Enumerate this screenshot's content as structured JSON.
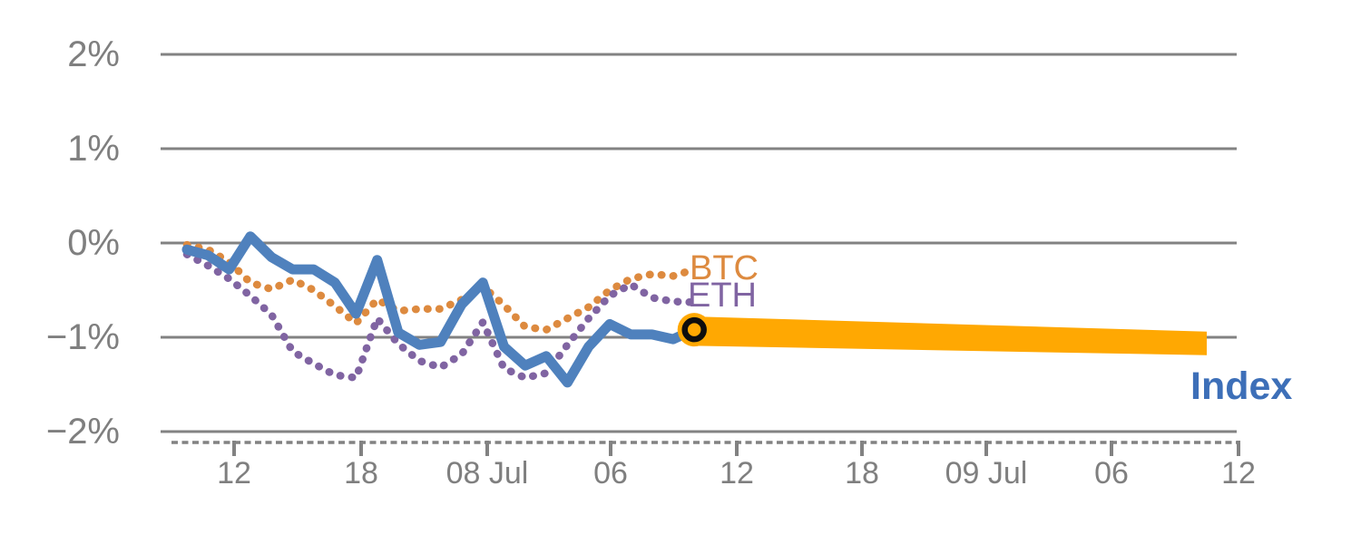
{
  "chart_data": {
    "type": "line",
    "title": "",
    "description": "Hourly percent change of crypto Index vs BTC and ETH with 24h Index forecast band",
    "grid": "horizontal",
    "legend_position": "inline-labels",
    "colors": {
      "index_line": "#4F81BD",
      "index_label": "#3D6FB8",
      "btc": "#DD8A3F",
      "eth": "#8064A2",
      "forecast_band": "#FFA802",
      "marker_ring": "#0D0D0D",
      "grid": "#828282",
      "tick_text": "#7F7F7F"
    },
    "y_axis": {
      "tick_labels": [
        "2%",
        "1%",
        "0%",
        "−1%",
        "−2%"
      ],
      "tick_values": [
        2,
        1,
        0,
        -1,
        -2
      ],
      "ylim": [
        -2.3,
        2.3
      ],
      "unit": "percent change"
    },
    "x_axis": {
      "tick_labels": [
        "12",
        "18",
        "08 Jul",
        "06",
        "12",
        "18",
        "09 Jul",
        "06",
        "12"
      ],
      "major_tick_interval": "6 hours",
      "minor_tick_interval": "1 hour"
    },
    "x_hours": [
      "07 Jul 10:00",
      "07 Jul 11:00",
      "07 Jul 12:00",
      "07 Jul 13:00",
      "07 Jul 14:00",
      "07 Jul 15:00",
      "07 Jul 16:00",
      "07 Jul 17:00",
      "07 Jul 18:00",
      "07 Jul 19:00",
      "07 Jul 20:00",
      "07 Jul 21:00",
      "07 Jul 22:00",
      "07 Jul 23:00",
      "08 Jul 00:00",
      "08 Jul 01:00",
      "08 Jul 02:00",
      "08 Jul 03:00",
      "08 Jul 04:00",
      "08 Jul 05:00",
      "08 Jul 06:00",
      "08 Jul 07:00",
      "08 Jul 08:00",
      "08 Jul 09:00",
      "08 Jul 10:00"
    ],
    "series": [
      {
        "name": "Index",
        "style": "solid-thick",
        "color": "#4F81BD",
        "values": [
          -0.07,
          -0.13,
          -0.28,
          0.07,
          -0.15,
          -0.28,
          -0.28,
          -0.42,
          -0.75,
          -0.18,
          -0.95,
          -1.08,
          -1.05,
          -0.65,
          -0.42,
          -1.1,
          -1.3,
          -1.2,
          -1.48,
          -1.1,
          -0.86,
          -0.97,
          -0.97,
          -1.02,
          -0.92
        ]
      },
      {
        "name": "BTC",
        "style": "dotted",
        "color": "#DD8A3F",
        "values": [
          -0.02,
          -0.07,
          -0.2,
          -0.42,
          -0.49,
          -0.39,
          -0.5,
          -0.67,
          -0.85,
          -0.6,
          -0.72,
          -0.7,
          -0.7,
          -0.6,
          -0.46,
          -0.66,
          -0.89,
          -0.92,
          -0.8,
          -0.68,
          -0.5,
          -0.38,
          -0.33,
          -0.35,
          -0.28
        ]
      },
      {
        "name": "ETH",
        "style": "dotted",
        "color": "#8064A2",
        "values": [
          -0.12,
          -0.24,
          -0.38,
          -0.56,
          -0.76,
          -1.15,
          -1.28,
          -1.4,
          -1.43,
          -0.8,
          -1.07,
          -1.25,
          -1.32,
          -1.18,
          -0.84,
          -1.33,
          -1.43,
          -1.38,
          -1.08,
          -0.8,
          -0.56,
          -0.44,
          -0.58,
          -0.62,
          -0.63
        ]
      }
    ],
    "forecast": {
      "series": "Index",
      "start_time": "08 Jul 10:00",
      "end_time": "09 Jul 10:00",
      "center_start": -0.92,
      "center_end": -1.06,
      "upper_start": -0.78,
      "upper_end": -0.94,
      "lower_start": -1.09,
      "lower_end": -1.19,
      "color": "#FFA802"
    },
    "marker": {
      "shape": "ringed-circle",
      "time": "08 Jul 10:00",
      "value": -0.92,
      "fill": "#FFA802",
      "ring_color": "#0D0D0D"
    },
    "annotations": [
      {
        "text": "BTC",
        "color": "#DD8A3F",
        "bold": false
      },
      {
        "text": "ETH",
        "color": "#8064A2",
        "bold": false
      },
      {
        "text": "Index",
        "color": "#3D6FB8",
        "bold": true
      }
    ]
  }
}
